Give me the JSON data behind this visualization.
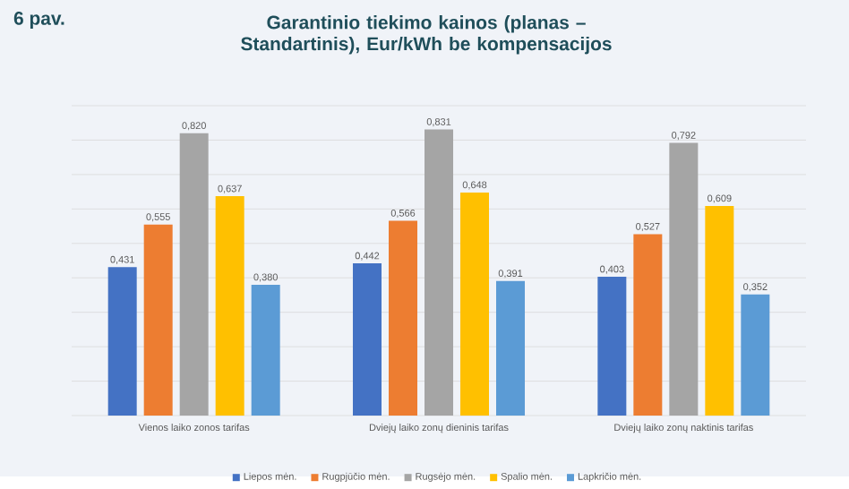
{
  "chart_data": {
    "type": "bar",
    "title": "Garantinio tiekimo kainos (planas – Standartinis), Eur/kWh be kompensacijos",
    "annotations": [
      "6 pav."
    ],
    "categories": [
      "Vienos laiko zonos tarifas",
      "Dviejų laiko zonų dieninis tarifas",
      "Dviejų laiko zonų naktinis tarifas"
    ],
    "series": [
      {
        "name": "Liepos mėn.",
        "color": "#4472c4",
        "values": [
          0.431,
          0.442,
          0.403
        ],
        "value_labels": [
          "0,431",
          "0,442",
          "0,403"
        ]
      },
      {
        "name": "Rugpjūčio mėn.",
        "color": "#ed7d31",
        "values": [
          0.555,
          0.566,
          0.527
        ],
        "value_labels": [
          "0,555",
          "0,566",
          "0,527"
        ]
      },
      {
        "name": "Rugsėjo mėn.",
        "color": "#a5a5a5",
        "values": [
          0.82,
          0.831,
          0.792
        ],
        "value_labels": [
          "0,820",
          "0,831",
          "0,792"
        ]
      },
      {
        "name": "Spalio mėn.",
        "color": "#ffc000",
        "values": [
          0.637,
          0.648,
          0.609
        ],
        "value_labels": [
          "0,637",
          "0,648",
          "0,609"
        ]
      },
      {
        "name": "Lapkričio mėn.",
        "color": "#5b9bd5",
        "values": [
          0.38,
          0.391,
          0.352
        ],
        "value_labels": [
          "0,380",
          "0,391",
          "0,352"
        ]
      }
    ],
    "ylim": [
      0,
      0.9
    ],
    "yticks": [
      {
        "value": 0,
        "label": null
      },
      {
        "value": 0.1,
        "label": null
      },
      {
        "value": 0.2,
        "label": null
      },
      {
        "value": 0.3,
        "label": null
      },
      {
        "value": 0.4,
        "label": null
      },
      {
        "value": 0.5,
        "label": null
      },
      {
        "value": 0.6,
        "label": null
      },
      {
        "value": 0.7,
        "label": null
      },
      {
        "value": 0.8,
        "label": null
      },
      {
        "value": 0.9,
        "label": null
      }
    ],
    "tick_labels": "x",
    "grid": "y",
    "legend": "bottom"
  }
}
